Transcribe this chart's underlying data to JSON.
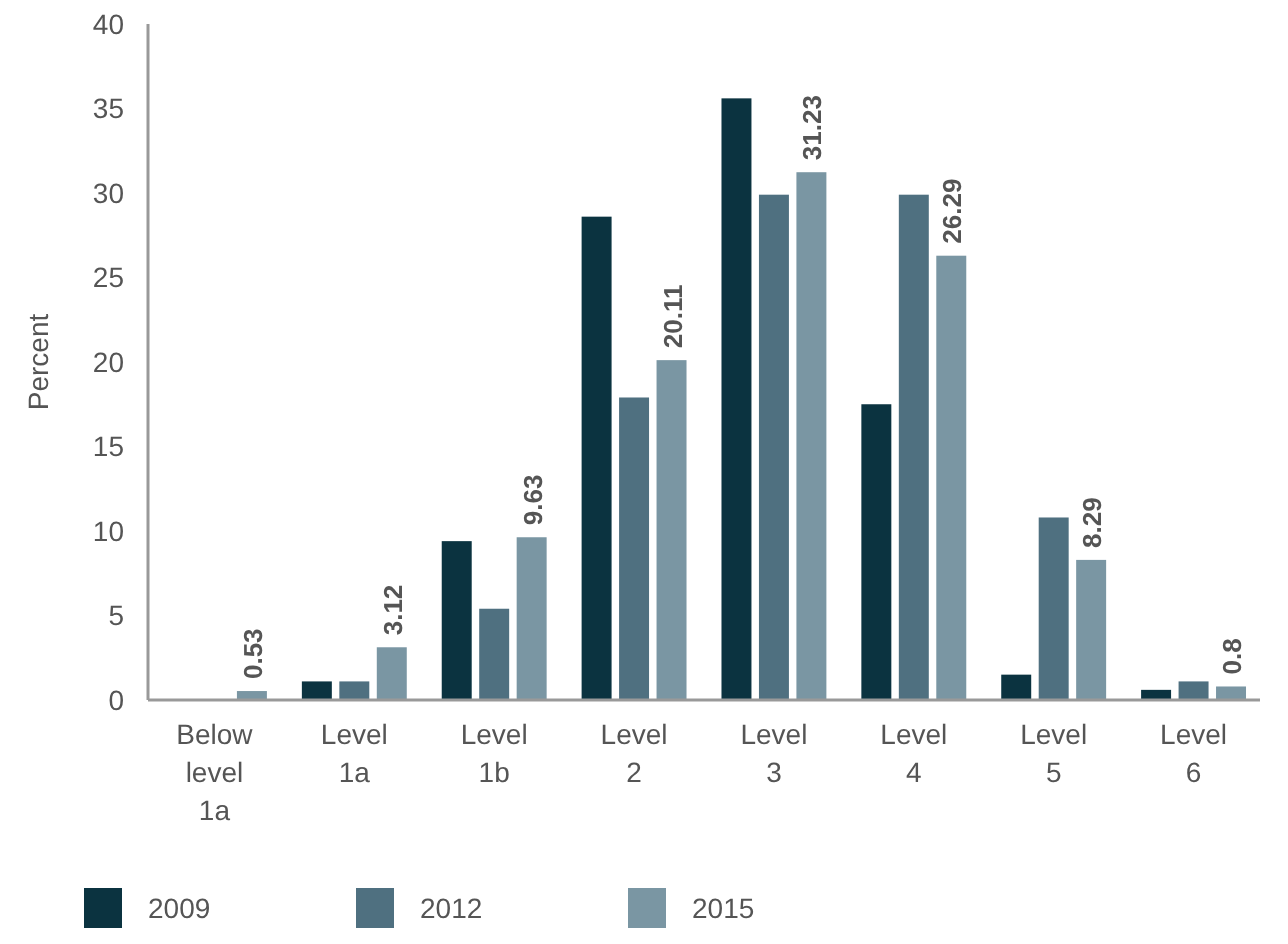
{
  "chart_data": {
    "type": "bar",
    "ylabel": "Percent",
    "categories": [
      "Below level 1a",
      "Level 1a",
      "Level 1b",
      "Level 2",
      "Level 3",
      "Level 4",
      "Level 5",
      "Level 6"
    ],
    "series": [
      {
        "name": "2009",
        "color": "#0b3340",
        "values": [
          0,
          1.1,
          9.4,
          28.6,
          35.6,
          17.5,
          1.5,
          0.6
        ]
      },
      {
        "name": "2012",
        "color": "#4f7080",
        "values": [
          0,
          1.1,
          5.4,
          17.9,
          29.9,
          29.9,
          10.8,
          1.1
        ]
      },
      {
        "name": "2015",
        "color": "#7a96a3",
        "values": [
          0.53,
          3.12,
          9.63,
          20.11,
          31.23,
          26.29,
          8.29,
          0.8
        ],
        "value_labels": [
          "0.53",
          "3.12",
          "9.63",
          "20.11",
          "31.23",
          "26.29",
          "8.29",
          "0.8"
        ]
      }
    ],
    "ylim": [
      0,
      40
    ],
    "yticks": [
      0,
      5,
      10,
      15,
      20,
      25,
      30,
      35,
      40
    ],
    "grid": false,
    "legend": "bottom left"
  }
}
